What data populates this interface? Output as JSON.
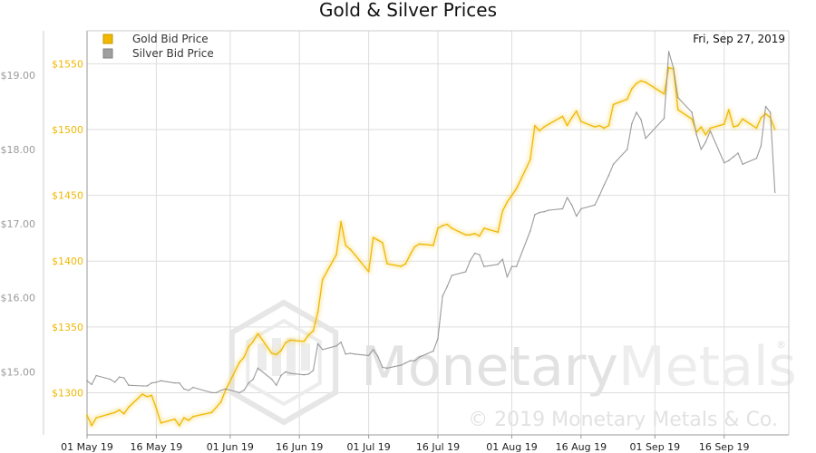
{
  "chart_data": {
    "type": "line",
    "title": "Gold & Silver Prices",
    "date_label": "Fri, Sep 27, 2019",
    "legend_placement": "top-left",
    "grid": true,
    "x_ticks": [
      "01 May 19",
      "16 May 19",
      "01 Jun 19",
      "16 Jun 19",
      "01 Jul 19",
      "16 Jul 19",
      "01 Aug 19",
      "16 Aug 19",
      "01 Sep 19",
      "16 Sep 19"
    ],
    "x_range": [
      "2019-05-01",
      "2019-09-30"
    ],
    "gold_axis": {
      "ticks": [
        "$1300",
        "$1350",
        "$1400",
        "$1450",
        "$1500",
        "$1550"
      ],
      "values": [
        1300,
        1350,
        1400,
        1450,
        1500,
        1550
      ],
      "range": [
        1268,
        1575
      ]
    },
    "silver_axis": {
      "ticks": [
        "$15.00",
        "$16.00",
        "$17.00",
        "$18.00",
        "$19.00"
      ],
      "values": [
        15,
        16,
        17,
        18,
        19
      ],
      "range": [
        14.15,
        19.6
      ]
    },
    "watermark": {
      "brand": "MonetaryMetals",
      "brand_first": "Monetary",
      "brand_second": "Metals",
      "registered": "®",
      "copyright": "© 2019 Monetary Metals & Co."
    },
    "colors": {
      "gold": "#f0b800",
      "silver": "#9a9a9a",
      "grid": "#dddddd",
      "axis": "#999999"
    },
    "series": [
      {
        "name": "Gold Bid Price",
        "color": "#f0b800",
        "x": [
          "2019-05-01",
          "2019-05-02",
          "2019-05-03",
          "2019-05-06",
          "2019-05-07",
          "2019-05-08",
          "2019-05-09",
          "2019-05-10",
          "2019-05-13",
          "2019-05-14",
          "2019-05-15",
          "2019-05-16",
          "2019-05-17",
          "2019-05-20",
          "2019-05-21",
          "2019-05-22",
          "2019-05-23",
          "2019-05-24",
          "2019-05-28",
          "2019-05-29",
          "2019-05-30",
          "2019-05-31",
          "2019-06-03",
          "2019-06-04",
          "2019-06-05",
          "2019-06-06",
          "2019-06-07",
          "2019-06-10",
          "2019-06-11",
          "2019-06-12",
          "2019-06-13",
          "2019-06-14",
          "2019-06-17",
          "2019-06-18",
          "2019-06-19",
          "2019-06-20",
          "2019-06-21",
          "2019-06-24",
          "2019-06-25",
          "2019-06-26",
          "2019-06-27",
          "2019-06-28",
          "2019-07-01",
          "2019-07-02",
          "2019-07-03",
          "2019-07-04",
          "2019-07-05",
          "2019-07-08",
          "2019-07-09",
          "2019-07-10",
          "2019-07-11",
          "2019-07-12",
          "2019-07-15",
          "2019-07-16",
          "2019-07-17",
          "2019-07-18",
          "2019-07-19",
          "2019-07-22",
          "2019-07-23",
          "2019-07-24",
          "2019-07-25",
          "2019-07-26",
          "2019-07-29",
          "2019-07-30",
          "2019-07-31",
          "2019-08-01",
          "2019-08-02",
          "2019-08-05",
          "2019-08-06",
          "2019-08-07",
          "2019-08-08",
          "2019-08-09",
          "2019-08-12",
          "2019-08-13",
          "2019-08-14",
          "2019-08-15",
          "2019-08-16",
          "2019-08-19",
          "2019-08-20",
          "2019-08-21",
          "2019-08-22",
          "2019-08-23",
          "2019-08-26",
          "2019-08-27",
          "2019-08-28",
          "2019-08-29",
          "2019-08-30",
          "2019-09-03",
          "2019-09-04",
          "2019-09-05",
          "2019-09-06",
          "2019-09-09",
          "2019-09-10",
          "2019-09-11",
          "2019-09-12",
          "2019-09-13",
          "2019-09-16",
          "2019-09-17",
          "2019-09-18",
          "2019-09-19",
          "2019-09-20",
          "2019-09-23",
          "2019-09-24",
          "2019-09-25",
          "2019-09-26",
          "2019-09-27"
        ],
        "values": [
          1283,
          1275,
          1281,
          1284,
          1285,
          1287,
          1284,
          1289,
          1299,
          1297,
          1298,
          1288,
          1277,
          1280,
          1275,
          1281,
          1279,
          1282,
          1285,
          1289,
          1293,
          1302,
          1323,
          1327,
          1335,
          1339,
          1345,
          1330,
          1329,
          1332,
          1338,
          1340,
          1339,
          1344,
          1347,
          1361,
          1386,
          1405,
          1430,
          1412,
          1409,
          1405,
          1392,
          1418,
          1416,
          1414,
          1398,
          1396,
          1398,
          1405,
          1411,
          1413,
          1412,
          1425,
          1427,
          1428,
          1425,
          1420,
          1420,
          1421,
          1419,
          1425,
          1422,
          1438,
          1445,
          1450,
          1455,
          1477,
          1503,
          1499,
          1502,
          1504,
          1510,
          1503,
          1509,
          1514,
          1506,
          1502,
          1503,
          1501,
          1503,
          1519,
          1523,
          1531,
          1535,
          1537,
          1536,
          1527,
          1547,
          1546,
          1515,
          1508,
          1498,
          1502,
          1496,
          1501,
          1504,
          1515,
          1502,
          1503,
          1508,
          1501,
          1509,
          1512,
          1509,
          1500
        ]
      },
      {
        "name": "Silver Bid Price",
        "color": "#9a9a9a",
        "x": [
          "2019-05-01",
          "2019-05-02",
          "2019-05-03",
          "2019-05-06",
          "2019-05-07",
          "2019-05-08",
          "2019-05-09",
          "2019-05-10",
          "2019-05-13",
          "2019-05-14",
          "2019-05-15",
          "2019-05-16",
          "2019-05-17",
          "2019-05-20",
          "2019-05-21",
          "2019-05-22",
          "2019-05-23",
          "2019-05-24",
          "2019-05-28",
          "2019-05-29",
          "2019-05-30",
          "2019-05-31",
          "2019-06-03",
          "2019-06-04",
          "2019-06-05",
          "2019-06-06",
          "2019-06-07",
          "2019-06-10",
          "2019-06-11",
          "2019-06-12",
          "2019-06-13",
          "2019-06-14",
          "2019-06-17",
          "2019-06-18",
          "2019-06-19",
          "2019-06-20",
          "2019-06-21",
          "2019-06-24",
          "2019-06-25",
          "2019-06-26",
          "2019-06-27",
          "2019-06-28",
          "2019-07-01",
          "2019-07-02",
          "2019-07-03",
          "2019-07-04",
          "2019-07-05",
          "2019-07-08",
          "2019-07-09",
          "2019-07-10",
          "2019-07-11",
          "2019-07-12",
          "2019-07-15",
          "2019-07-16",
          "2019-07-17",
          "2019-07-18",
          "2019-07-19",
          "2019-07-22",
          "2019-07-23",
          "2019-07-24",
          "2019-07-25",
          "2019-07-26",
          "2019-07-29",
          "2019-07-30",
          "2019-07-31",
          "2019-08-01",
          "2019-08-02",
          "2019-08-05",
          "2019-08-06",
          "2019-08-07",
          "2019-08-08",
          "2019-08-09",
          "2019-08-12",
          "2019-08-13",
          "2019-08-14",
          "2019-08-15",
          "2019-08-16",
          "2019-08-19",
          "2019-08-20",
          "2019-08-21",
          "2019-08-22",
          "2019-08-23",
          "2019-08-26",
          "2019-08-27",
          "2019-08-28",
          "2019-08-29",
          "2019-08-30",
          "2019-09-03",
          "2019-09-04",
          "2019-09-05",
          "2019-09-06",
          "2019-09-09",
          "2019-09-10",
          "2019-09-11",
          "2019-09-12",
          "2019-09-13",
          "2019-09-16",
          "2019-09-17",
          "2019-09-18",
          "2019-09-19",
          "2019-09-20",
          "2019-09-23",
          "2019-09-24",
          "2019-09-25",
          "2019-09-26",
          "2019-09-27"
        ],
        "values": [
          14.88,
          14.83,
          14.95,
          14.9,
          14.86,
          14.93,
          14.92,
          14.82,
          14.81,
          14.81,
          14.85,
          14.86,
          14.88,
          14.85,
          14.85,
          14.77,
          14.75,
          14.79,
          14.72,
          14.72,
          14.75,
          14.77,
          14.72,
          14.75,
          14.85,
          14.9,
          15.05,
          14.9,
          14.82,
          14.95,
          15.0,
          14.98,
          14.96,
          14.97,
          15.02,
          15.38,
          15.3,
          15.35,
          15.4,
          15.24,
          15.25,
          15.24,
          15.22,
          15.3,
          15.21,
          15.06,
          15.05,
          15.09,
          15.12,
          15.15,
          15.15,
          15.2,
          15.28,
          15.45,
          16.02,
          16.15,
          16.3,
          16.35,
          16.5,
          16.6,
          16.58,
          16.42,
          16.45,
          16.52,
          16.28,
          16.42,
          16.42,
          16.9,
          17.12,
          17.15,
          17.16,
          17.18,
          17.2,
          17.35,
          17.25,
          17.1,
          17.2,
          17.25,
          17.38,
          17.52,
          17.65,
          17.8,
          18.0,
          18.35,
          18.5,
          18.4,
          18.15,
          18.42,
          19.32,
          19.1,
          18.7,
          18.5,
          18.2,
          18.0,
          18.1,
          18.25,
          17.82,
          17.85,
          17.9,
          17.95,
          17.8,
          17.88,
          18.05,
          18.58,
          18.5,
          17.42
        ]
      }
    ]
  }
}
